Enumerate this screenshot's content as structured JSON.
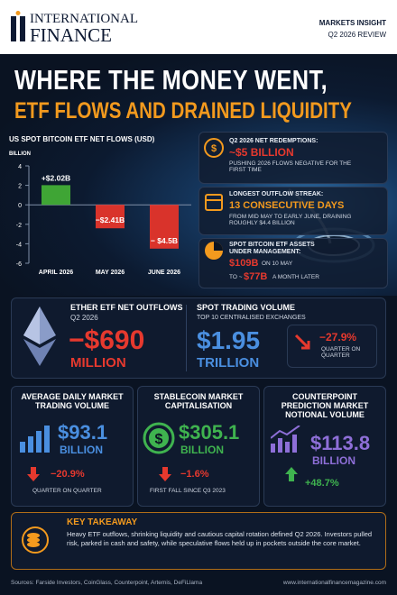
{
  "header": {
    "brand_line1": "INTERNATIONAL",
    "brand_line2": "FINANCE",
    "tag_line1": "MARKETS INSIGHT",
    "tag_line2": "Q2 2026 REVIEW"
  },
  "hero": {
    "title_line1": "WHERE THE MONEY WENT,",
    "title_line2": "ETF FLOWS AND DRAINED LIQUIDITY"
  },
  "chart_data": {
    "type": "bar",
    "title": "US SPOT BITCOIN ETF NET FLOWS (USD)",
    "y_label": "BILLION",
    "categories": [
      "APRIL 2026",
      "MAY 2026",
      "JUNE 2026"
    ],
    "values": [
      2.02,
      -2.41,
      -4.5
    ],
    "value_labels": [
      "+$2.02B",
      "−$2.41B",
      "− $4.5B"
    ],
    "colors": [
      "#3fa535",
      "#d9332b",
      "#d9332b"
    ],
    "ylim": [
      -6,
      4
    ],
    "yticks": [
      -6,
      -4,
      -2,
      0,
      2,
      4
    ],
    "grid": false
  },
  "notes": [
    {
      "label": "Q2 2026 NET REDEMPTIONS:",
      "value": "~$5 BILLION",
      "text": "PUSHING 2026 FLOWS NEGATIVE FOR THE FIRST TIME"
    },
    {
      "label": "LONGEST OUTFLOW STREAK:",
      "value": "13 CONSECUTIVE DAYS",
      "text": "FROM MID MAY TO EARLY JUNE, DRAINING ROUGHLY $4.4 BILLION"
    },
    {
      "label": "SPOT BITCOIN ETF ASSETS UNDER MANAGEMENT:",
      "value": "$109B",
      "text": "ON 10 MAY",
      "connector": "TO ~",
      "value2": "$77B",
      "text2": "A MONTH LATER"
    }
  ],
  "ether": {
    "title": "ETHER ETF NET OUTFLOWS",
    "subtitle": "Q2 2026",
    "value": "−$690",
    "unit": "MILLION"
  },
  "spot_volume": {
    "title": "SPOT TRADING VOLUME",
    "subtitle": "TOP 10 CENTRALISED EXCHANGES",
    "value": "$1.95",
    "unit": "TRILLION",
    "change": "−27.9%",
    "change_note": "QUARTER ON QUARTER"
  },
  "stats": [
    {
      "title": "AVERAGE DAILY MARKET TRADING VOLUME",
      "value": "$93.1",
      "unit": "BILLION",
      "change": "−20.9%",
      "note": "QUARTER ON QUARTER"
    },
    {
      "title": "STABLECOIN MARKET CAPITALISATION",
      "value": "$305.1",
      "unit": "BILLION",
      "change": "−1.6%",
      "note": "FIRST FALL SINCE Q3 2023"
    },
    {
      "title": "COUNTERPOINT PREDICTION MARKET NOTIONAL VOLUME",
      "value": "$113.8",
      "unit": "BILLION",
      "change": "+48.7%"
    }
  ],
  "takeaway": {
    "title": "KEY TAKEAWAY",
    "text": "Heavy ETF outflows, shrinking liquidity and cautious capital rotation defined Q2 2026. Investors pulled risk, parked in cash and safety, while speculative flows held up in pockets outside the core market."
  },
  "footer": {
    "sources": "Sources: Farside Investors, CoinGlass, Counterpoint, Artemis, DeFiLlama",
    "website": "www.internationalfinancemagazine.com"
  }
}
